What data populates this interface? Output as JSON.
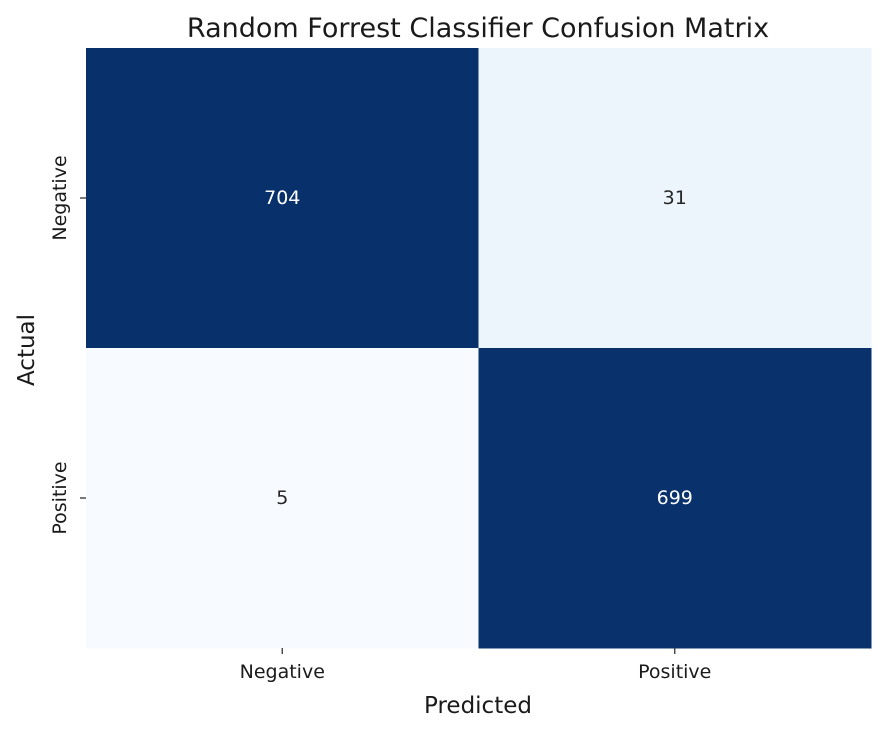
{
  "chart_data": {
    "type": "heatmap",
    "title": "Random Forrest Classifier Confusion Matrix",
    "xlabel": "Predicted",
    "ylabel": "Actual",
    "x_categories": [
      "Negative",
      "Positive"
    ],
    "y_categories": [
      "Negative",
      "Positive"
    ],
    "values": [
      [
        704,
        31
      ],
      [
        5,
        699
      ]
    ],
    "colormap": "Blues",
    "colorbar": false,
    "colors": {
      "low": "#f7fbff",
      "mid": "#6baed6",
      "high": "#08306b",
      "text_dark": "#262626",
      "text_light": "#ffffff"
    }
  }
}
